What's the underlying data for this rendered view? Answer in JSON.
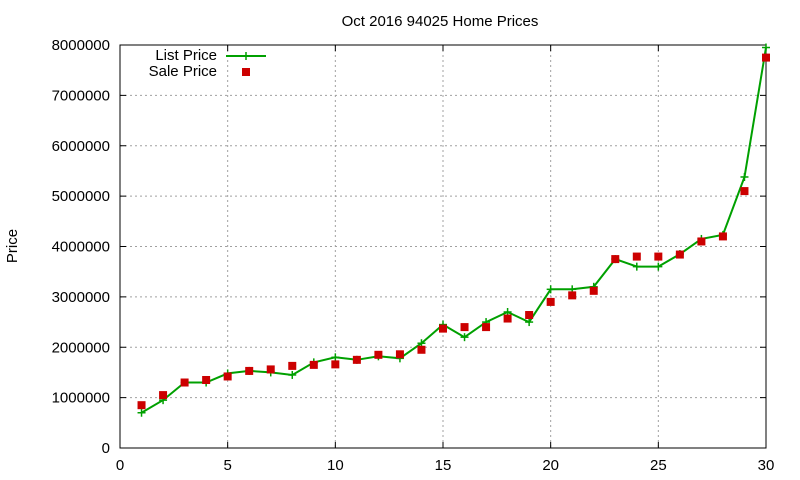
{
  "chart_data": {
    "type": "line",
    "title": "Oct 2016 94025 Home Prices",
    "xlabel": "",
    "ylabel": "Price",
    "xlim": [
      0,
      30
    ],
    "ylim": [
      0,
      8000000
    ],
    "x_ticks": [
      0,
      5,
      10,
      15,
      20,
      25,
      30
    ],
    "y_ticks": [
      0,
      1000000,
      2000000,
      3000000,
      4000000,
      5000000,
      6000000,
      7000000,
      8000000
    ],
    "grid": true,
    "legend_position": "top-left",
    "x": [
      1,
      2,
      3,
      4,
      5,
      6,
      7,
      8,
      9,
      10,
      11,
      12,
      13,
      14,
      15,
      16,
      17,
      18,
      19,
      20,
      21,
      22,
      23,
      24,
      25,
      26,
      27,
      28,
      29,
      30
    ],
    "series": [
      {
        "name": "List Price",
        "style": "line-with-plus-markers",
        "color": "#00a000",
        "values": [
          700000,
          950000,
          1300000,
          1300000,
          1480000,
          1530000,
          1500000,
          1450000,
          1700000,
          1800000,
          1750000,
          1820000,
          1780000,
          2080000,
          2450000,
          2200000,
          2500000,
          2700000,
          2500000,
          3150000,
          3150000,
          3200000,
          3750000,
          3600000,
          3600000,
          3850000,
          4150000,
          4230000,
          5380000,
          7950000
        ]
      },
      {
        "name": "Sale Price",
        "style": "square-markers",
        "color": "#cc0000",
        "values": [
          850000,
          1050000,
          1300000,
          1350000,
          1420000,
          1530000,
          1560000,
          1630000,
          1650000,
          1660000,
          1750000,
          1850000,
          1860000,
          1950000,
          2370000,
          2400000,
          2400000,
          2570000,
          2640000,
          2900000,
          3030000,
          3120000,
          3750000,
          3800000,
          3800000,
          3840000,
          4100000,
          4200000,
          5100000,
          7750000
        ]
      }
    ]
  }
}
